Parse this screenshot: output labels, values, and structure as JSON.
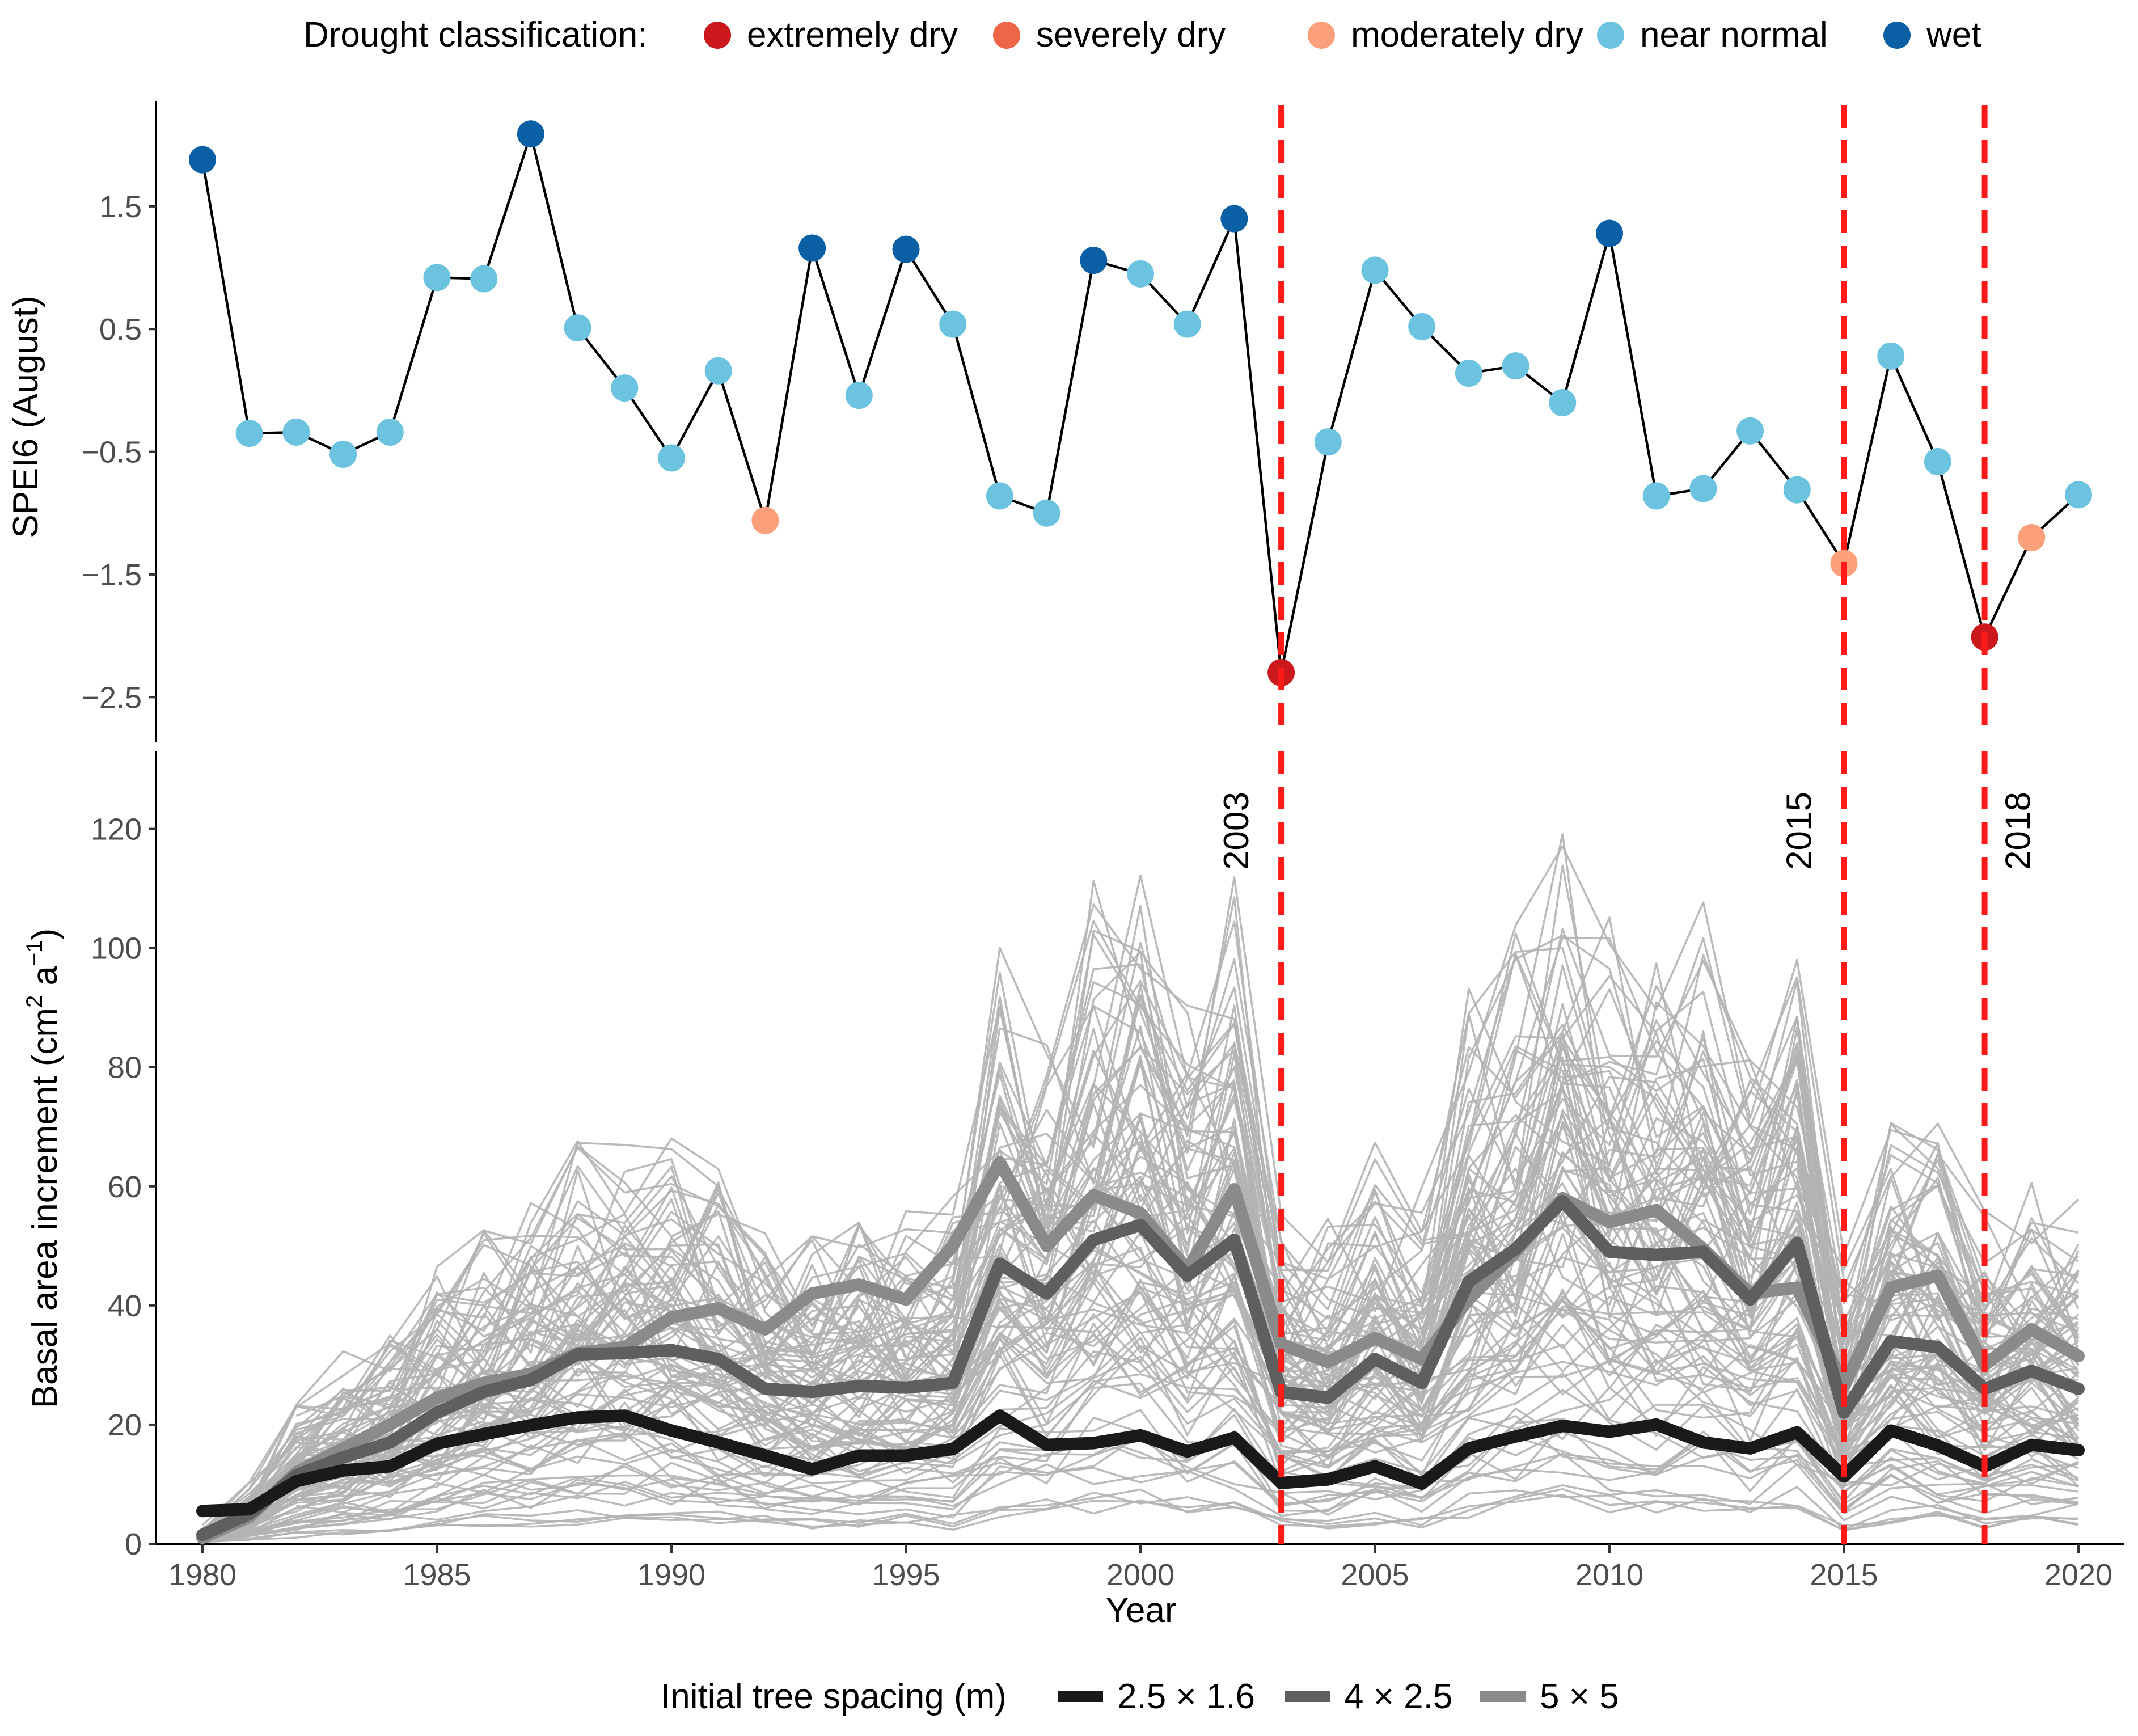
{
  "chart_data": [
    {
      "type": "line",
      "panel": "top",
      "ylabel": "SPEI6 (August)",
      "yticks": [
        1.5,
        0.5,
        -0.5,
        -1.5,
        -2.5
      ],
      "ytick_labels": [
        "1.5",
        "0.5",
        "−0.5",
        "−1.5",
        "−2.5"
      ],
      "ylim": [
        -2.85,
        2.35
      ],
      "legend": {
        "title": "Drought classification:",
        "placement": "top",
        "entries": [
          {
            "key": "extremely_dry",
            "label": "extremely dry",
            "color": "#cb181d"
          },
          {
            "key": "severely_dry",
            "label": "severely dry",
            "color": "#ef6548"
          },
          {
            "key": "moderately_dry",
            "label": "moderately dry",
            "color": "#fc9f7b"
          },
          {
            "key": "near_normal",
            "label": "near normal",
            "color": "#6cc3e0"
          },
          {
            "key": "wet",
            "label": "wet",
            "color": "#0b5fa5"
          }
        ]
      },
      "x": [
        1980,
        1981,
        1982,
        1983,
        1984,
        1985,
        1986,
        1987,
        1988,
        1989,
        1990,
        1991,
        1992,
        1993,
        1994,
        1995,
        1996,
        1997,
        1998,
        1999,
        2000,
        2001,
        2002,
        2003,
        2004,
        2005,
        2006,
        2007,
        2008,
        2009,
        2010,
        2011,
        2012,
        2013,
        2014,
        2015,
        2016,
        2017,
        2018,
        2019,
        2020
      ],
      "values": [
        1.88,
        -0.35,
        -0.34,
        -0.52,
        -0.34,
        0.92,
        0.91,
        2.09,
        0.51,
        0.02,
        -0.55,
        0.16,
        -1.06,
        1.16,
        -0.04,
        1.15,
        0.54,
        -0.86,
        -1.0,
        1.06,
        0.95,
        0.54,
        1.4,
        -2.3,
        -0.42,
        0.98,
        0.52,
        0.14,
        0.2,
        -0.1,
        1.28,
        -0.86,
        -0.8,
        -0.33,
        -0.81,
        -1.41,
        0.28,
        -0.58,
        -2.01,
        -1.2,
        -0.85
      ],
      "classes": [
        "wet",
        "near_normal",
        "near_normal",
        "near_normal",
        "near_normal",
        "near_normal",
        "near_normal",
        "wet",
        "near_normal",
        "near_normal",
        "near_normal",
        "near_normal",
        "moderately_dry",
        "wet",
        "near_normal",
        "wet",
        "near_normal",
        "near_normal",
        "near_normal",
        "wet",
        "near_normal",
        "near_normal",
        "wet",
        "extremely_dry",
        "near_normal",
        "near_normal",
        "near_normal",
        "near_normal",
        "near_normal",
        "near_normal",
        "wet",
        "near_normal",
        "near_normal",
        "near_normal",
        "near_normal",
        "moderately_dry",
        "near_normal",
        "near_normal",
        "extremely_dry",
        "moderately_dry",
        "near_normal"
      ],
      "line_color": "#000000"
    },
    {
      "type": "line",
      "panel": "bottom",
      "xlabel": "Year",
      "ylabel_main": "Basal area increment (cm",
      "ylabel_sup1": "2",
      "ylabel_mid": " a",
      "ylabel_sup2": "−1",
      "ylabel_end": ")",
      "xlim": [
        1980,
        2020
      ],
      "xticks": [
        1980,
        1985,
        1990,
        1995,
        2000,
        2005,
        2010,
        2015,
        2020
      ],
      "ylim": [
        0,
        133
      ],
      "yticks": [
        0,
        20,
        40,
        60,
        80,
        100,
        120
      ],
      "legend": {
        "title": "Initial tree spacing (m)",
        "placement": "bottom"
      },
      "series": [
        {
          "name": "2.5 × 1.6",
          "color": "#1a1a1a",
          "width": 22,
          "values": [
            5.5,
            5.8,
            10.5,
            12.3,
            13.0,
            16.8,
            18.4,
            19.9,
            21.2,
            21.5,
            19.0,
            17.0,
            14.8,
            12.5,
            14.8,
            14.8,
            15.9,
            21.5,
            16.6,
            16.9,
            18.2,
            15.5,
            17.8,
            10.2,
            10.8,
            13.0,
            10.1,
            16.0,
            18.0,
            19.8,
            18.8,
            20.0,
            17.0,
            16.0,
            18.7,
            11.3,
            19.0,
            16.5,
            13.0,
            16.6,
            15.7
          ]
        },
        {
          "name": "4 × 2.5",
          "color": "#5f5f5f",
          "width": 22,
          "values": [
            1.5,
            5.0,
            11.5,
            14.5,
            17.0,
            22.0,
            25.5,
            27.5,
            31.8,
            32.0,
            32.5,
            31.0,
            26.0,
            25.5,
            26.5,
            26.2,
            27.0,
            47.0,
            42.0,
            51.0,
            53.5,
            45.0,
            51.0,
            25.5,
            24.5,
            31.0,
            27.0,
            44.0,
            49.5,
            57.5,
            49.0,
            48.5,
            49.0,
            41.0,
            50.5,
            22.0,
            34.0,
            33.0,
            26.0,
            29.0,
            26.0
          ]
        },
        {
          "name": "5 × 5",
          "color": "#8a8a8a",
          "width": 22,
          "values": [
            1.0,
            4.5,
            12.0,
            16.0,
            20.0,
            24.5,
            27.0,
            28.5,
            32.0,
            33.0,
            38.0,
            39.5,
            36.0,
            42.0,
            43.5,
            41.0,
            50.0,
            64.0,
            50.0,
            58.5,
            55.5,
            46.0,
            59.5,
            33.5,
            30.5,
            34.5,
            31.0,
            41.0,
            49.0,
            58.0,
            54.0,
            56.0,
            49.5,
            42.0,
            43.0,
            26.5,
            43.0,
            45.0,
            30.0,
            36.0,
            31.5
          ]
        }
      ]
    }
  ],
  "events": {
    "color": "#ff1a1a",
    "items": [
      {
        "year": 2003,
        "label": "2003"
      },
      {
        "year": 2015,
        "label": "2015"
      },
      {
        "year": 2018,
        "label": "2018"
      }
    ]
  }
}
